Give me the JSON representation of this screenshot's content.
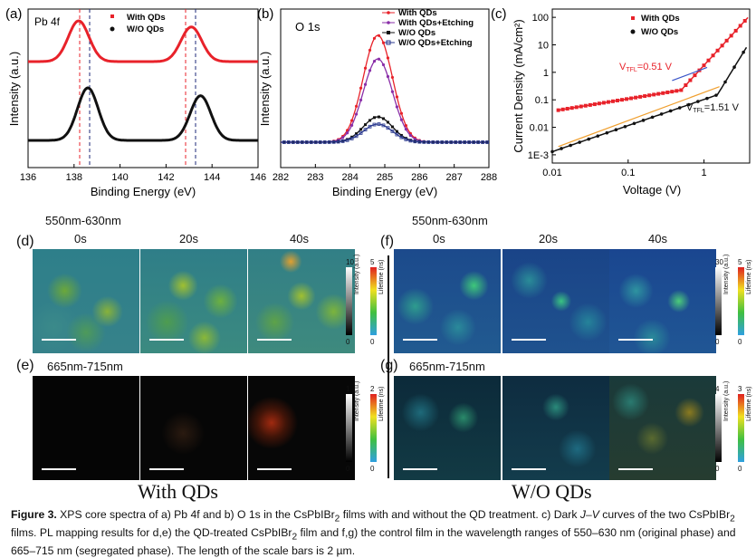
{
  "panels": {
    "a": {
      "label": "(a)",
      "title": "Pb 4f",
      "xlabel": "Binding Energy (eV)",
      "ylabel": "Intensity (a.u.)",
      "xticks": [
        "136",
        "138",
        "140",
        "142",
        "144",
        "146"
      ],
      "legend": [
        "With QDs",
        "W/O QDs"
      ]
    },
    "b": {
      "label": "(b)",
      "title": "O 1s",
      "xlabel": "Binding Energy (eV)",
      "ylabel": "Intensity (a.u.)",
      "xticks": [
        "282",
        "283",
        "284",
        "285",
        "286",
        "287",
        "288"
      ],
      "legend": [
        "With QDs",
        "With QDs+Etching",
        "W/O QDs",
        "W/O QDs+Etching"
      ]
    },
    "c": {
      "label": "(c)",
      "xlabel": "Voltage (V)",
      "ylabel": "Current Density (mA/cm²)",
      "xticks": [
        "0.01",
        "0.1",
        "1"
      ],
      "yticks": [
        "100",
        "10",
        "1",
        "0.1",
        "0.01",
        "1E-3"
      ],
      "legend": [
        "With QDs",
        "W/O QDs"
      ],
      "vtfl_red": "V",
      "vtfl_red_sub": "TFL",
      "vtfl_red_val": "=0.51 V",
      "vtfl_black": "V",
      "vtfl_black_sub": "TFL",
      "vtfl_black_val": "=1.51 V"
    }
  },
  "maps": {
    "d": {
      "label": "(d)",
      "range": "550nm-630nm",
      "times": [
        "0s",
        "20s",
        "40s"
      ],
      "cb": {
        "int_top": "10",
        "int_bot": "0",
        "life_top": "5",
        "life_bot": "0",
        "int_label": "Intensity (a.u.)",
        "life_label": "Lifetime (ns)"
      }
    },
    "e": {
      "label": "(e)",
      "range": "665nm-715nm",
      "cb": {
        "int_top": "1",
        "int_bot": "0",
        "life_top": "2",
        "life_bot": "0",
        "int_label": "Intensity (a.u.)",
        "life_label": "Lifetime (ns)"
      }
    },
    "f": {
      "label": "(f)",
      "range": "550nm-630nm",
      "times": [
        "0s",
        "20s",
        "40s"
      ],
      "cb": {
        "int_top": "30",
        "int_bot": "0",
        "life_top": "5",
        "life_bot": "0",
        "int_label": "Intensity (a.u.)",
        "life_label": "Lifetime (ns)"
      }
    },
    "g": {
      "label": "(g)",
      "range": "665nm-715nm",
      "cb": {
        "int_top": "4",
        "int_bot": "0",
        "life_top": "3",
        "life_bot": "0",
        "int_label": "Intensity (a.u.)",
        "life_label": "Lifetime (ns)"
      }
    }
  },
  "group_labels": {
    "left": "With QDs",
    "right": "W/O QDs"
  },
  "caption": {
    "fig": "Figure 3.",
    "p1": " XPS core spectra of a) Pb 4f and b) O 1s in the CsPbIBr",
    "sub1": "2",
    "p2": " films with and without the QD treatment. c) Dark ",
    "jv": "J–V",
    "p3": " curves of the two CsPbIBr",
    "sub2": "2",
    "p4": " films. PL mapping results for d,e) the QD-treated CsPbIBr",
    "sub3": "2",
    "p5": " film and f,g) the control film in the wavelength ranges of 550–630 nm (original phase) and 665–715 nm (segregated phase). The length of the scale bars is 2 µm."
  },
  "colors": {
    "red": "#e8222a",
    "black": "#111111",
    "purple": "#8a2fa8",
    "blue": "#2b3a8f",
    "orange": "#f0a030",
    "fit_blue": "#3a55c8"
  }
}
